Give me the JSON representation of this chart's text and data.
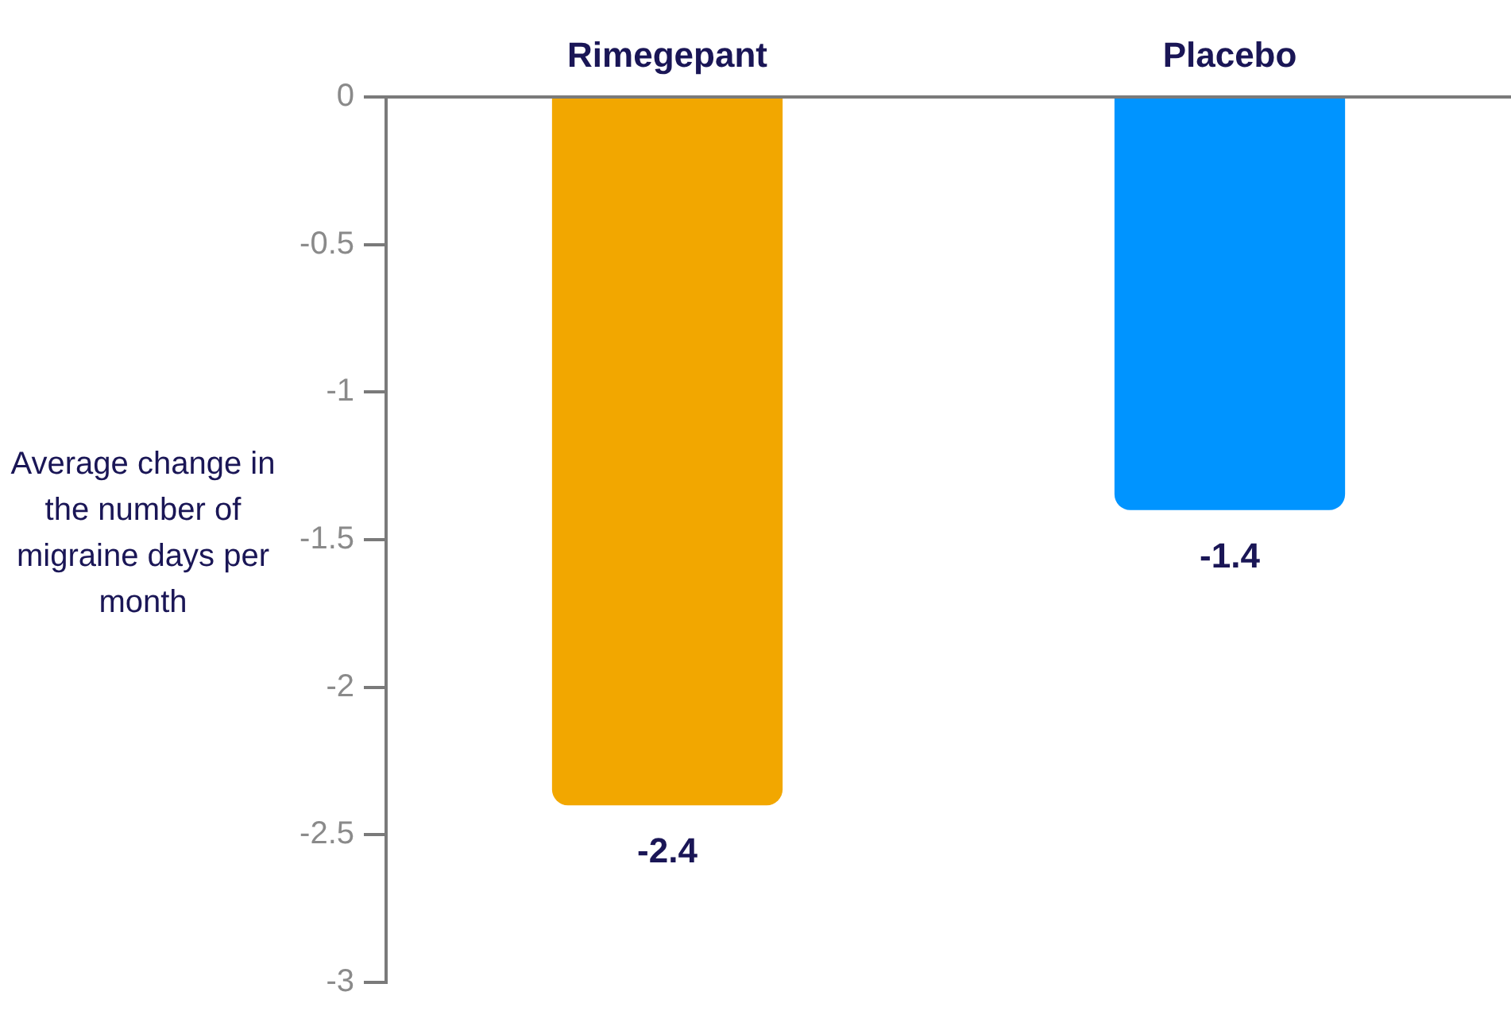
{
  "chart_data": {
    "type": "bar",
    "categories": [
      "Rimegepant",
      "Placebo"
    ],
    "values": [
      -2.4,
      -1.4
    ],
    "colors": [
      "#f2a700",
      "#0094ff"
    ],
    "ylabel": "Average change in the number of migraine days per month",
    "ylim": [
      -3,
      0
    ],
    "yticks": [
      -3,
      -2.5,
      -2,
      -1.5,
      -1,
      -0.5,
      0
    ],
    "data_labels": true,
    "grid": false,
    "legend": false
  }
}
